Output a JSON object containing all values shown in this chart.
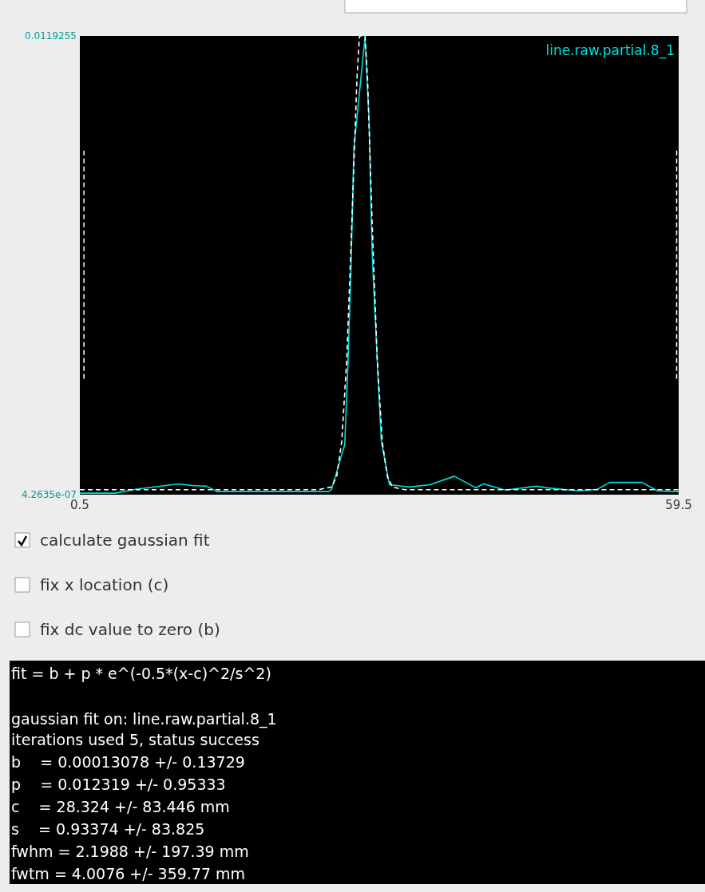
{
  "chart_data": {
    "type": "line",
    "xlim": [
      0.5,
      59.5
    ],
    "xticks": [
      0.5,
      59.5
    ],
    "ylim": [
      4.2635e-07,
      0.0119255
    ],
    "yticks": [
      {
        "value": 4.2635e-07,
        "label": "4.2635e-07"
      },
      0.0119255
    ],
    "legend": "top right",
    "grid": false,
    "marker": "none",
    "series": [
      {
        "name": "line.raw.partial.8_1",
        "color": "#00dede",
        "line_style": "solid",
        "x": [
          0.5,
          4,
          6,
          10.2,
          11.5,
          13,
          14,
          16,
          20,
          25,
          25.3,
          26.6,
          26.9,
          27.2,
          27.5,
          28.6,
          29,
          29.3,
          29.8,
          30.2,
          31,
          33,
          35,
          37.4,
          39.5,
          40.3,
          42.4,
          45.5,
          46.5,
          49.6,
          51.5,
          52.7,
          55.9,
          57.4,
          59.5
        ],
        "values": [
          4e-05,
          4e-05,
          0.00014,
          0.00028,
          0.00024,
          0.00022,
          8e-05,
          8e-05,
          8e-05,
          8e-05,
          0.00014,
          0.0013,
          0.0033,
          0.0057,
          0.009,
          0.0119,
          0.0097,
          0.0063,
          0.0035,
          0.0014,
          0.00026,
          0.0002,
          0.00026,
          0.00048,
          0.00018,
          0.00028,
          0.00012,
          0.00022,
          0.00018,
          0.0001,
          0.00014,
          0.00032,
          0.00032,
          0.0001,
          8e-05
        ]
      },
      {
        "color": "#ffffff",
        "line_style": "dashed",
        "x": [
          0.5,
          24,
          25.3,
          25.8,
          26.3,
          26.8,
          27.3,
          27.8,
          28.05,
          28.6,
          28.85,
          29.3,
          29.8,
          30.3,
          30.8,
          31.3,
          32.5,
          59.5
        ],
        "values": [
          0.00013,
          0.00013,
          0.0002,
          0.00047,
          0.00137,
          0.00352,
          0.00707,
          0.0108,
          0.01192,
          0.01192,
          0.0108,
          0.00707,
          0.00352,
          0.00137,
          0.00047,
          0.0002,
          0.00013,
          0.00013
        ]
      }
    ],
    "ref_lines": [
      {
        "axis": "x",
        "value": 0.9,
        "color": "#ffffff",
        "line_style": "dashed"
      },
      {
        "axis": "x",
        "value": 59.3,
        "color": "#ffffff",
        "line_style": "dashed"
      }
    ],
    "annotations": [
      "calculate gaussian fit",
      "fix x location (c)",
      "fix dc value to zero (b)",
      "fit = b + p * e^(-0.5*(x-c)^2/s^2)",
      "gaussian fit on: line.raw.partial.8_1",
      "iterations used 5, status success",
      "b    = 0.00013078 +/- 0.13729",
      "p    = 0.012319 +/- 0.95333",
      "c    = 28.324 +/- 83.446 mm",
      "s    = 0.93374 +/- 83.825",
      "fwhm = 2.1988 +/- 197.39 mm",
      "fwtm = 4.0076 +/- 359.77 mm"
    ]
  }
}
